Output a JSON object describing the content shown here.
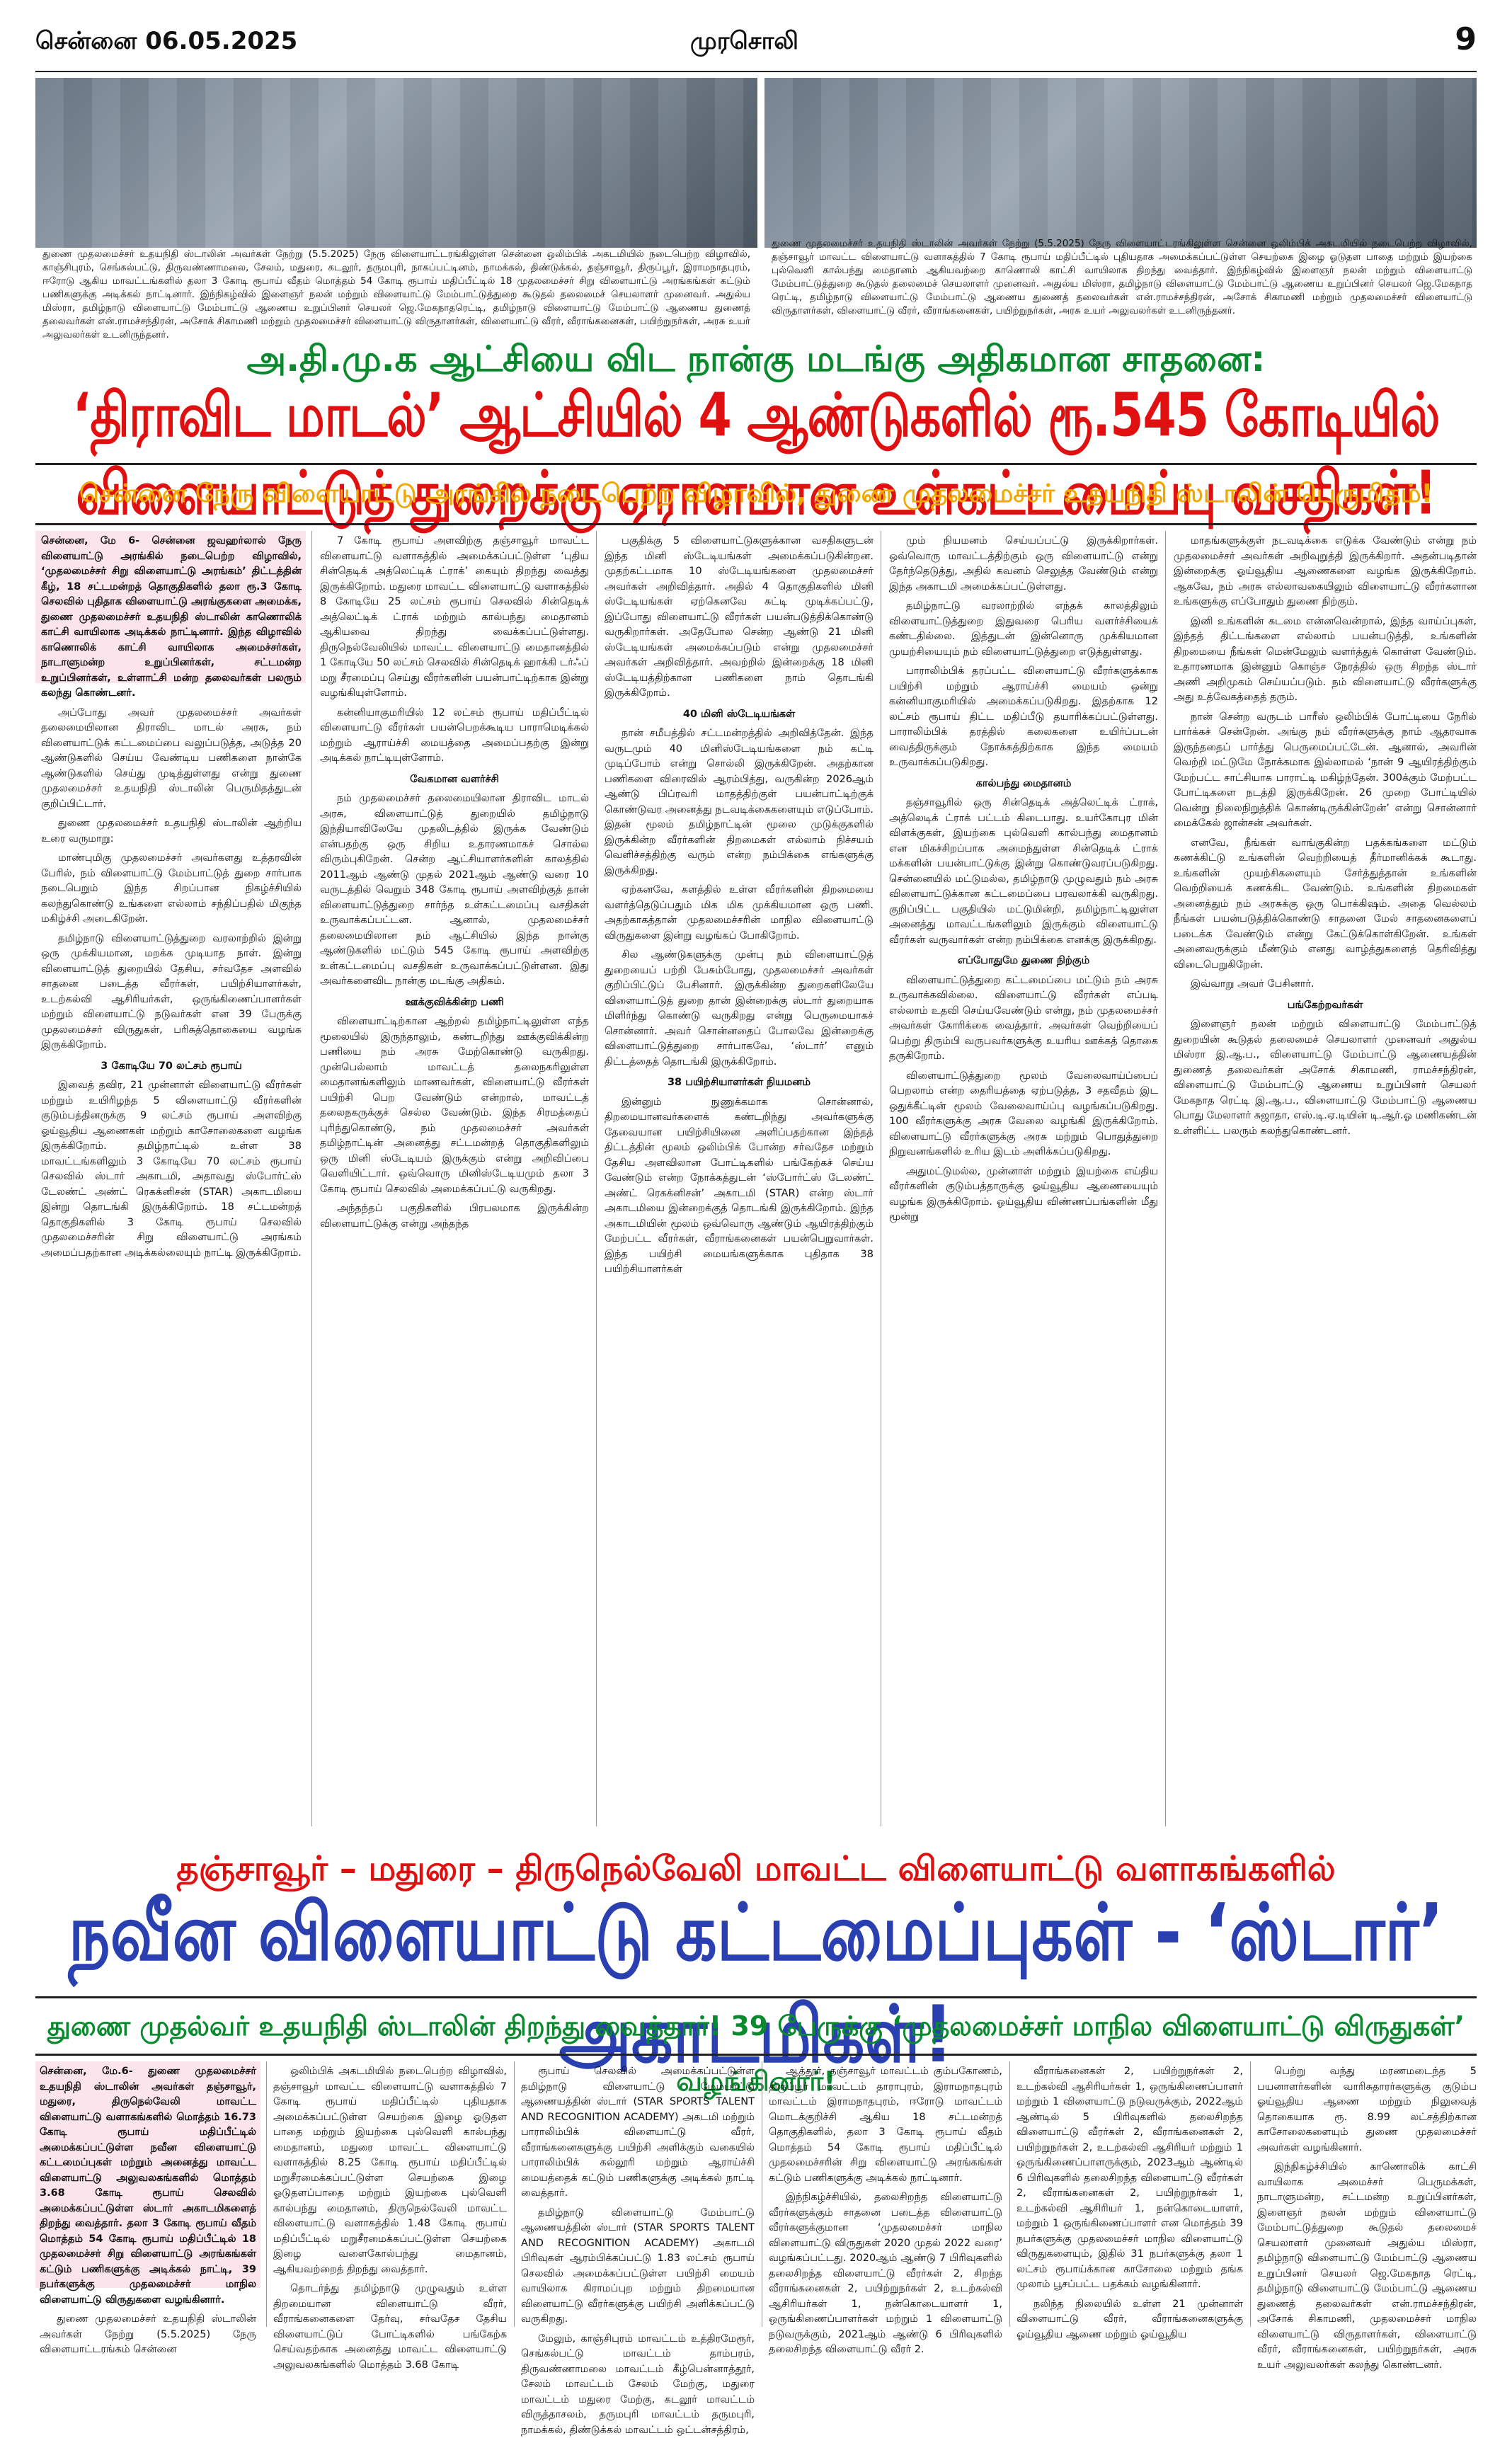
{
  "masthead": {
    "date": "சென்னை 06.05.2025",
    "name": "முரசொலி",
    "page": "9"
  },
  "captions": {
    "left": "துணை முதலமைச்சர் உதயநிதி ஸ்டாலின் அவர்கள் நேற்று (5.5.2025) நேரு விளையாட்டரங்கிலுள்ள சென்னை ஒலிம்பிக் அகடமியில் நடைபெற்ற விழாவில், காஞ்சிபுரம், செங்கல்பட்டு, திருவண்ணாமலை, சேலம், மதுரை, கடலூர், தருமபுரி, நாகப்பட்டினம், நாமக்கல், திண்டுக்கல், தஞ்சாவூர், திருப்பூர், இராமநாதபுரம், ஈரோடு ஆகிய மாவட்டங்களில் தலா 3 கோடி ரூபாய் வீதம் மொத்தம் 54 கோடி ரூபாய் மதிப்பீட்டில் 18 முதலமைச்சர் சிறு விளையாட்டு அரங்கங்கள் கட்டும் பணிகளுக்கு அடிக்கல் நாட்டினார். இந்நிகழ்வில் இளைஞர் நலன் மற்றும் விளையாட்டு மேம்பாட்டுத்துறை கூடுதல் தலைமைச் செயலாளர் முனைவர். அதுல்ய மிஸ்ரா, தமிழ்நாடு விளையாட்டு மேம்பாட்டு ஆணைய உறுப்பினர் செயலர் ஜெ.மேகநாதரெட்டி, தமிழ்நாடு விளையாட்டு மேம்பாட்டு ஆணைய துணைத் தலைவர்கள் என்.ராமச்சந்திரன், அசோக் சிகாமணி மற்றும் முதலமைச்சர் விளையாட்டு விருதாளர்கள், விளையாட்டு வீரர், வீராங்கனைகள், பயிற்றுநர்கள், அரசு உயர் அலுவலர்கள் உடனிருந்தனர்.",
    "right": "துணை முதலமைச்சர் உதயநிதி ஸ்டாலின் அவர்கள் நேற்று (5.5.2025) நேரு விளையாட்டரங்கிலுள்ள சென்னை ஒலிம்பிக் அகடமியில் நடைபெற்ற விழாவில், தஞ்சாவூர் மாவட்ட விளையாட்டு வளாகத்தில் 7 கோடி ரூபாய் மதிப்பீட்டில் புதியதாக அமைக்கப்பட்டுள்ள செயற்கை இழை ஓடுதள பாதை மற்றும் இயற்கை புல்வெளி கால்பந்து மைதானம் ஆகியவற்றை காணொலி காட்சி வாயிலாக திறந்து வைத்தார். இந்நிகழ்வில் இளைஞர் நலன் மற்றும் விளையாட்டு மேம்பாட்டுத்துறை கூடுதல் தலைமைச் செயலாளர் முனைவர். அதுல்ய மிஸ்ரா, தமிழ்நாடு விளையாட்டு மேம்பாட்டு ஆணைய உறுப்பினர் செயலர் ஜெ.மேகநாத ரெட்டி, தமிழ்நாடு விளையாட்டு மேம்பாட்டு ஆணைய துணைத் தலைவர்கள் என்.ராமச்சந்திரன், அசோக் சிகாமணி மற்றும் முதலமைச்சர் விளையாட்டு விருதாளர்கள், விளையாட்டு வீரர், வீராங்கனைகள், பயிற்றுநர்கள், அரசு உயர் அலுவலர்கள் உடனிருந்தனர்."
  },
  "story1": {
    "kicker": "அ.தி.மு.க ஆட்சியை விட நான்கு மடங்கு அதிகமான சாதனை:",
    "headline": "‘திராவிட மாடல்’ ஆட்சியில் 4 ஆண்டுகளில் ரூ.545 கோடியில் விளையாட்டுத் துறைக்கு ஏராளமான உள்கட்டமைப்பு வசதிகள்!",
    "deck": "சென்னை நேரு விளையாட்டு அரங்கில் நடைபெற்ற விழாவில், துணை முதலமைச்சர் உதயநிதி ஸ்டாலின் பெருமிதம்!",
    "columns": [
      [
        {
          "t": "lead",
          "v": "சென்னை, மே 6- சென்னை ஜவஹர்லால் நேரு விளையாட்டு அரங்கில் நடைபெற்ற விழாவில், ‘முதலமைச்சர் சிறு விளையாட்டு அரங்கம்’ திட்டத்தின் கீழ், 18 சட்டமன்றத் தொகுதிகளில் தலா ரூ.3 கோடி செலவில் புதிதாக விளையாட்டு அரங்குகளை அமைக்க, துணை முதலமைச்சர் உதயநிதி ஸ்டாலின் காணொலிக் காட்சி வாயிலாக அடிக்கல் நாட்டினார். இந்த விழாவில் காணொலிக் காட்சி வாயிலாக அமைச்சர்கள், நாடாளுமன்ற உறுப்பினர்கள், சட்டமன்ற உறுப்பினர்கள், உள்ளாட்சி மன்ற தலைவர்கள் பலரும் கலந்து கொண்டனர்."
        },
        {
          "t": "p",
          "v": "அப்போது அவர் முதலமைச்சர் அவர்கள் தலைமையிலான திராவிட மாடல் அரசு, நம் விளையாட்டுக் கட்டமைப்பை வலுப்படுத்த, அடுத்த 20 ஆண்டுகளில் செய்ய வேண்டிய பணிகளை நான்கே ஆண்டுகளில் செய்து முடித்துள்ளது என்று துணை முதலமைச்சர் உதயநிதி ஸ்டாலின் பெருமிதத்துடன் குறிப்பிட்டார்."
        },
        {
          "t": "p",
          "v": "துணை முதலமைச்சர் உதயநிதி ஸ்டாலின் ஆற்றிய உரை வருமாறு:"
        },
        {
          "t": "p",
          "v": "மாண்புமிகு முதலமைச்சர் அவர்களது உத்தரவின் பேரில், நம் விளையாட்டு மேம்பாட்டுத் துறை சார்பாக நடைபெறும் இந்த சிறப்பான நிகழ்ச்சியில் கலந்துகொண்டு உங்களை எல்லாம் சந்திப்பதில் மிகுந்த மகிழ்ச்சி அடைகிறேன்."
        },
        {
          "t": "p",
          "v": "தமிழ்நாடு விளையாட்டுத்துறை வரலாற்றில் இன்று ஒரு முக்கியமான, மறக்க முடியாத நாள். இன்று விளையாட்டுத் துறையில் தேசிய, சர்வதேச அளவில் சாதனை படைத்த வீரர்கள், பயிற்சியாளர்கள், உடற்கல்வி ஆசிரியர்கள், ஒருங்கிணைப்பாளர்கள் மற்றும் விளையாட்டு நடுவர்கள் என 39 பேருக்கு முதலமைச்சர் விருதுகள், பரிசுத்தொகையை வழங்க இருக்கிறோம்."
        },
        {
          "t": "sub",
          "v": "3 கோடியே 70 லட்சம் ரூபாய்"
        },
        {
          "t": "p",
          "v": "இவைத் தவிர, 21 முன்னாள் விளையாட்டு வீரர்கள் மற்றும் உயிரிழந்த 5 விளையாட்டு வீரர்களின் குடும்பத்தினருக்கு 9 லட்சம் ரூபாய் அளவிற்கு ஓய்வூதிய ஆணைகள் மற்றும் காசோலைகளை வழங்க இருக்கிறோம். தமிழ்நாட்டில் உள்ள 38 மாவட்டங்களிலும் 3 கோடியே 70 லட்சம் ரூபாய் செலவில் ஸ்டார் அகாடமி, அதாவது ஸ்போர்ட்ஸ் டேலண்ட் அண்ட் ரெகக்னிசன் (STAR) அகாடமியை இன்று தொடங்கி இருக்கிறோம். 18 சட்டமன்றத் தொகுதிகளில் 3 கோடி ரூபாய் செலவில் முதலமைச்சரின் சிறு விளையாட்டு அரங்கம் அமைப்பதற்கான அடிக்கல்லையும் நாட்டி இருக்கிறோம்."
        }
      ],
      [
        {
          "t": "p",
          "v": "7 கோடி ரூபாய் அளவிற்கு தஞ்சாவூர் மாவட்ட விளையாட்டு வளாகத்தில் அமைக்கப்பட்டுள்ள ‘புதிய சின்தெடிக் அத்லெட்டிக் ட்ராக்’ கையும் திறந்து வைத்து இருக்கிறோம். மதுரை மாவட்ட விளையாட்டு வளாகத்தில் 8 கோடியே 25 லட்சம் ரூபாய் செலவில் சின்தெடிக் அத்லெட்டிக் ட்ராக் மற்றும் கால்பந்து மைதானம் ஆகியவை திறந்து வைக்கப்பட்டுள்ளது. திருநெல்வேலியில் மாவட்ட விளையாட்டு மைதானத்தில் 1 கோடியே 50 லட்சம் செலவில் சின்தெடிக் ஹாக்கி டர்ஃப் மறு சீரமைப்பு செய்து வீரர்களின் பயன்பாட்டிற்காக இன்று வழங்கியுள்ளோம்."
        },
        {
          "t": "p",
          "v": "கன்னியாகுமரியில் 12 லட்சம் ரூபாய் மதிப்பீட்டில் விளையாட்டு வீரர்கள் பயன்பெறக்கூடிய பாராமெடிக்கல் மற்றும் ஆராய்ச்சி மையத்தை அமைப்பதற்கு இன்று அடிக்கல் நாட்டியுள்ளோம்."
        },
        {
          "t": "sub",
          "v": "வேகமான வளர்ச்சி"
        },
        {
          "t": "p",
          "v": "நம் முதலமைச்சர் தலைமையிலான திராவிட மாடல் அரசு, விளையாட்டுத் துறையில் தமிழ்நாடு இந்தியாவிலேயே முதலிடத்தில் இருக்க வேண்டும் என்பதற்கு ஒரு சிறிய உதாரணமாகச் சொல்ல விரும்புகிறேன். சென்ற ஆட்சியாளர்களின் காலத்தில் 2011ஆம் ஆண்டு முதல் 2021ஆம் ஆண்டு வரை 10 வருடத்தில் வெறும் 348 கோடி ரூபாய் அளவிற்குத் தான் விளையாட்டுத்துறை சார்ந்த உள்கட்டமைப்பு வசதிகள் உருவாக்கப்பட்டன. ஆனால், முதலமைச்சர் தலைமையிலான நம் ஆட்சியில் இந்த நான்கு ஆண்டுகளில் மட்டும் 545 கோடி ரூபாய் அளவிற்கு உள்கட்டமைப்பு வசதிகள் உருவாக்கப்பட்டுள்ளன. இது அவர்களைவிட நான்கு மடங்கு அதிகம்."
        },
        {
          "t": "sub",
          "v": "ஊக்குவிக்கின்ற பணி"
        },
        {
          "t": "p",
          "v": "விளையாட்டிற்கான ஆற்றல் தமிழ்நாட்டிலுள்ள எந்த மூலையில் இருந்தாலும், கண்டறிந்து ஊக்குவிக்கின்ற பணியை நம் அரசு மேற்கொண்டு வருகிறது. முன்பெல்லாம் மாவட்டத் தலைநகரிலுள்ள மைதானங்களிலும் மாணவர்கள், விளையாட்டு வீரர்கள் பயிற்சி பெற வேண்டும் என்றால், மாவட்டத் தலைநகருக்குச் செல்ல வேண்டும். இந்த சிரமத்தைப் புரிந்துகொண்டு, நம் முதலமைச்சர் அவர்கள் தமிழ்நாட்டின் அனைத்து சட்டமன்றத் தொகுதிகளிலும் ஒரு மினி ஸ்டேடியம் இருக்கும் என்று அறிவிப்பை வெளியிட்டார். ஒவ்வொரு மினிஸ்டேடியமும் தலா 3 கோடி ரூபாய் செலவில் அமைக்கப்பட்டு வருகிறது."
        },
        {
          "t": "p",
          "v": "அந்தந்தப் பகுதிகளில் பிரபலமாக இருக்கின்ற விளையாட்டுக்கு என்று அந்தந்த"
        }
      ],
      [
        {
          "t": "p",
          "v": "பகுதிக்கு 5 விளையாட்டுகளுக்கான வசதிகளுடன் இந்த மினி ஸ்டேடியங்கள் அமைக்கப்படுகின்றன. முதற்கட்டமாக 10 ஸ்டேடியங்களை முதலமைச்சர் அவர்கள் அறிவித்தார். அதில் 4 தொகுதிகளில் மினி ஸ்டேடியங்கள் ஏற்கெனவே கட்டி முடிக்கப்பட்டு, இப்போது விளையாட்டு வீரர்கள் பயன்படுத்திக்கொண்டு வருகிறார்கள். அதேபோல சென்ற ஆண்டு 21 மினி ஸ்டேடியங்கள் அமைக்கப்படும் என்று முதலமைச்சர் அவர்கள் அறிவித்தார். அவற்றில் இன்றைக்கு 18 மினி ஸ்டேடியத்திற்கான பணிகளை நாம் தொடங்கி இருக்கிறோம்."
        },
        {
          "t": "sub",
          "v": "40 மினி ஸ்டேடியங்கள்"
        },
        {
          "t": "p",
          "v": "நான் சமீபத்தில் சட்டமன்றத்தில் அறிவித்தேன். இந்த வருடமும் 40 மினிஸ்டேடியங்களை நம் கட்டி முடிப்போம் என்று சொல்லி இருக்கிறேன். அதற்கான பணிகளை விரைவில் ஆரம்பித்து, வருகின்ற 2026ஆம் ஆண்டு பிப்ரவரி மாதத்திற்குள் பயன்பாட்டிற்குக் கொண்டுவர அனைத்து நடவடிக்கைகளையும் எடுப்போம். இதன் மூலம் தமிழ்நாட்டின் மூலை முடுக்குகளில் இருக்கின்ற வீரர்களின் திறமைகள் எல்லாம் நிச்சயம் வெளிச்சத்திற்கு வரும் என்ற நம்பிக்கை எங்களுக்கு இருக்கிறது."
        },
        {
          "t": "p",
          "v": "ஏற்கனவே, களத்தில் உள்ள வீரர்களின் திறமையை வளர்த்தெடுப்பதும் மிக மிக முக்கியமான ஒரு பணி. அதற்காகத்தான் முதலமைச்சரின் மாநில விளையாட்டு விருதுகளை இன்று வழங்கப் போகிறோம்."
        },
        {
          "t": "p",
          "v": "சில ஆண்டுகளுக்கு முன்பு நம் விளையாட்டுத் துறையைப் பற்றி பேசும்போது, முதலமைச்சர் அவர்கள் குறிப்பிட்டுப் பேசினார். இருக்கின்ற துறைகளிலேயே விளையாட்டுத் துறை தான் இன்றைக்கு ஸ்டார் துறையாக மிளிர்ந்து கொண்டு வருகிறது என்று பெருமையாகச் சொன்னார். அவர் சொன்னதைப் போலவே இன்றைக்கு விளையாட்டுத்துறை சார்பாகவே, ‘ஸ்டார்’ எனும் திட்டத்தைத் தொடங்கி இருக்கிறோம்."
        },
        {
          "t": "sub",
          "v": "38 பயிற்சியாளர்கள் நியமனம்"
        },
        {
          "t": "p",
          "v": "இன்னும் நுணுக்கமாக சொன்னால், திறமையானவர்களைக் கண்டறிந்து அவர்களுக்கு தேவையான பயிற்சியினை அளிப்பதற்கான இந்தத் திட்டத்தின் மூலம் ஒலிம்பிக் போன்ற சர்வதேச மற்றும் தேசிய அளவிலான போட்டிகளில் பங்கேற்கச் செய்ய வேண்டும் என்ற நோக்கத்துடன் ‘ஸ்போர்ட்ஸ் டேலண்ட் அண்ட் ரெகக்னிசன்’ அகாடமி (STAR) என்ற ஸ்டார் அகாடமியை இன்றைக்குத் தொடங்கி இருக்கிறோம். இந்த அகாடமியின் மூலம் ஒவ்வொரு ஆண்டும் ஆயிரத்திற்கும் மேற்பட்ட வீரர்கள், வீராங்கனைகள் பயன்பெறுவார்கள். இந்த பயிற்சி மையங்களுக்காக புதிதாக 38 பயிற்சியாளர்கள்"
        }
      ],
      [
        {
          "t": "p",
          "v": "மும் நியமனம் செய்யப்பட்டு இருக்கிறார்கள். ஒவ்வொரு மாவட்டத்திற்கும் ஒரு விளையாட்டு என்று தேர்ந்தெடுத்து, அதில் கவனம் செலுத்த வேண்டும் என்று இந்த அகாடமி அமைக்கப்பட்டுள்ளது."
        },
        {
          "t": "p",
          "v": "தமிழ்நாட்டு வரலாற்றில் எந்தக் காலத்திலும் விளையாட்டுத்துறை இதுவரை பெரிய வளர்ச்சியைக் கண்டதில்லை. இத்துடன் இன்னொரு முக்கியமான முயற்சியையும் நம் விளையாட்டுத்துறை எடுத்துள்ளது."
        },
        {
          "t": "p",
          "v": "பாராலிம்பிக் தரப்பட்ட விளையாட்டு வீரர்களுக்காக பயிற்சி மற்றும் ஆராய்ச்சி மையம் ஒன்று கன்னியாகுமரியில் அமைக்கப்படுகிறது. இதற்காக 12 லட்சம் ரூபாய் திட்ட மதிப்பீடு தயாரிக்கப்பட்டுள்ளது. பாராலிம்பிக் தரத்தில் கலைகளை உயிர்ப்படன் வைத்திருக்கும் நோக்கத்திற்காக இந்த மையம் உருவாக்கப்படுகிறது."
        },
        {
          "t": "sub",
          "v": "கால்பந்து மைதானம்"
        },
        {
          "t": "p",
          "v": "தஞ்சாவூரில் ஒரு சின்தெடிக் அத்லெட்டிக் ட்ராக், அத்லெடிக் ட்ராக் பட்டம் கிடைபாது. உயர்கோபுர மின் விளக்குகள், இயற்கை புல்வெளி கால்பந்து மைதானம் என மிகச்சிறப்பாக அமைந்துள்ள சின்தெடிக் ட்ராக் மக்களின் பயன்பாட்டுக்கு இன்று கொண்டுவரப்படுகிறது. சென்னையில் மட்டுமல்ல, தமிழ்நாடு முழுவதும் நம் அரசு விளையாட்டுக்கான கட்டமைப்பை பரவலாக்கி வருகிறது. குறிப்பிட்ட பகுதியில் மட்டுமின்றி, தமிழ்நாட்டிலுள்ள அனைத்து மாவட்டங்களிலும் இருக்கும் விளையாட்டு வீரர்கள் வருவார்கள் என்ற நம்பிக்கை எனக்கு இருக்கிறது."
        },
        {
          "t": "sub",
          "v": "எப்போதுமே துணை நிற்கும்"
        },
        {
          "t": "p",
          "v": "விளையாட்டுத்துறை கட்டமைப்பை மட்டும் நம் அரசு உருவாக்கவில்லை. விளையாட்டு வீரர்கள் எப்படி எல்லாம் உதவி செய்யவேண்டும் என்று, நம் முதலமைச்சர் அவர்கள் கோரிக்கை வைத்தார். அவர்கள் வெற்றியைப் பெற்று திரும்பி வருபவர்களுக்கு உயரிய ஊக்கத் தொகை தருகிறோம்."
        },
        {
          "t": "p",
          "v": "விளையாட்டுத்துறை மூலம் வேலைவாய்ப்பைப் பெறலாம் என்ற தைரியத்தை ஏற்படுத்த, 3 சதவீதம் இட ஒதுக்கீட்டின் மூலம் வேலைவாய்ப்பு வழங்கப்படுகிறது. 100 வீரர்களுக்கு அரசு வேலை வழங்கி இருக்கிறோம். விளையாட்டு வீரர்களுக்கு அரசு மற்றும் பொதுத்துறை நிறுவனங்களில் உரிய இடம் அளிக்கப்படுகிறது."
        },
        {
          "t": "p",
          "v": "அதுமட்டுமல்ல, முன்னாள் மற்றும் இயற்கை எய்திய வீரர்களின் குடும்பத்தாருக்கு ஓய்வூதிய ஆணையையும் வழங்க இருக்கிறோம். ஓய்வூதிய விண்ணப்பங்களின் மீது மூன்று"
        }
      ],
      [
        {
          "t": "p",
          "v": "மாதங்களுக்குள் நடவடிக்கை எடுக்க வேண்டும் என்று நம் முதலமைச்சர் அவர்கள் அறிவுறுத்தி இருக்கிறார். அதன்படிதான் இன்றைக்கு ஓய்வூதிய ஆணைகளை வழங்க இருக்கிறோம். ஆகவே, நம் அரசு எல்லாவகையிலும் விளையாட்டு வீரர்களான உங்களுக்கு எப்போதும் துணை நிற்கும்."
        },
        {
          "t": "p",
          "v": "இனி உங்களின் கடமை என்னவென்றால், இந்த வாய்ப்புகள், இந்தத் திட்டங்களை எல்லாம் பயன்படுத்தி, உங்களின் திறமையை நீங்கள் மென்மேலும் வளர்த்துக் கொள்ள வேண்டும். உதாரணமாக இன்னும் கொஞ்ச நேரத்தில் ஒரு சிறந்த ஸ்டார் அணி அறிமுகம் செய்யப்படும். நம் விளையாட்டு வீரர்களுக்கு அது உத்வேகத்தைத் தரும்."
        },
        {
          "t": "p",
          "v": "நான் சென்ற வருடம் பாரீஸ் ஒலிம்பிக் போட்டியை நேரில் பார்க்கச் சென்றேன். அங்கு நம் வீரர்களுக்கு நாம் ஆதரவாக இருந்ததைப் பார்த்து பெருமைப்பட்டேன். ஆனால், அவரின் வெற்றி மட்டுமே நோக்கமாக இல்லாமல் ‘நான் 9 ஆயிரத்திற்கும் மேற்பட்ட சாட்சியாக பாராட்டி மகிழ்ந்தேன். 300க்கும் மேற்பட்ட போட்டிகளை நடத்தி இருக்கிறேன். 26 முறை போட்டியில் வென்று நிலைநிறுத்திக் கொண்டிருக்கின்றேன்’ என்று சொன்னார் மைக்கேல் ஜான்சன் அவர்கள்."
        },
        {
          "t": "p",
          "v": "எனவே, நீங்கள் வாங்குகின்ற பதக்கங்களை மட்டும் கணக்கிட்டு உங்களின் வெற்றியைத் தீர்மானிக்கக் கூடாது. உங்களின் முயற்சிகளையும் சேர்த்துத்தான் உங்களின் வெற்றியைக் கணக்கிட வேண்டும். உங்களின் திறமைகள் அனைத்தும் நம் அரசுக்கு ஒரு பொக்கிஷம். அதை வெல்லம் நீங்கள் பயன்படுத்திக்கொண்டு சாதனை மேல் சாதனைகளைப் படைக்க வேண்டும் என்று கேட்டுக்கொள்கிறேன். உங்கள் அனைவருக்கும் மீண்டும் எனது வாழ்த்துகளைத் தெரிவித்து விடைபெறுகிறேன்."
        },
        {
          "t": "p",
          "v": "இவ்வாறு அவர் பேசினார்."
        },
        {
          "t": "sub",
          "v": "பங்கேற்றவர்கள்"
        },
        {
          "t": "p",
          "v": "இளைஞர் நலன் மற்றும் விளையாட்டு மேம்பாட்டுத் துறையின் கூடுதல் தலைமைச் செயலாளர் முனைவர் அதுல்ய மிஸ்ரா இ.ஆ.ப., விளையாட்டு மேம்பாட்டு ஆணையத்தின் துணைத் தலைவர்கள் அசோக் சிகாமணி, ராமச்சந்திரன், விளையாட்டு மேம்பாட்டு ஆணைய உறுப்பினர் செயலர் மேகநாத ரெட்டி இ.ஆ.ப., விளையாட்டு மேம்பாட்டு ஆணைய பொது மேலாளர் சுஜாதா, எஸ்.டி.ஏ.டியின் டி.ஆர்.ஓ மணிகண்டன் உள்ளிட்ட பலரும் கலந்துகொண்டனர்."
        }
      ]
    ]
  },
  "story2": {
    "kicker": "தஞ்சாவூர் – மதுரை – திருநெல்வேலி மாவட்ட விளையாட்டு வளாகங்களில்",
    "headline": "நவீன விளையாட்டு கட்டமைப்புகள் - ‘ஸ்டார்’ அகாடமிகள்!",
    "deck": "துணை முதல்வர் உதயநிதி ஸ்டாலின் திறந்து வைத்தார்! 39 பேருக்கு ‘முதலமைச்சர் மாநில விளையாட்டு விருதுகள்’ வழங்கினார்!",
    "columns": [
      [
        {
          "t": "lead",
          "v": "சென்னை, மே.6- துணை முதலமைச்சர் உதயநிதி ஸ்டாலின் அவர்கள் தஞ்சாவூர், மதுரை, திருநெல்வேலி மாவட்ட விளையாட்டு வளாகங்களில் மொத்தம் 16.73 கோடி ரூபாய் மதிப்பீட்டில் அமைக்கப்பட்டுள்ள நவீன விளையாட்டு கட்டமைப்புகள் மற்றும் அனைத்து மாவட்ட விளையாட்டு அலுவலகங்களில் மொத்தம் 3.68 கோடி ரூபாய் செலவில் அமைக்கப்பட்டுள்ள ஸ்டார் அகாடமிகளைத் திறந்து வைத்தார். தலா 3 கோடி ரூபாய் வீதம் மொத்தம் 54 கோடி ரூபாய் மதிப்பீட்டில் 18 முதலமைச்சர் சிறு விளையாட்டு அரங்கங்கள் கட்டும் பணிகளுக்கு அடிக்கல் நாட்டி, 39 நபர்களுக்கு முதலமைச்சர் மாநில விளையாட்டு விருதுகளை வழங்கினார்."
        },
        {
          "t": "p",
          "v": "துணை முதலமைச்சர் உதயநிதி ஸ்டாலின் அவர்கள் நேற்று (5.5.2025) நேரு விளையாட்டரங்கம் சென்னை"
        }
      ],
      [
        {
          "t": "p",
          "v": "ஒலிம்பிக் அகடமியில் நடைபெற்ற விழாவில், தஞ்சாவூர் மாவட்ட விளையாட்டு வளாகத்தில் 7 கோடி ரூபாய் மதிப்பீட்டில் புதியதாக அமைக்கப்பட்டுள்ள செயற்கை இழை ஓடுதள பாதை மற்றும் இயற்கை புல்வெளி கால்பந்து மைதானம், மதுரை மாவட்ட விளையாட்டு வளாகத்தில் 8.25 கோடி ரூபாய் மதிப்பீட்டில் மறுசீரமைக்கப்பட்டுள்ள செயற்கை இழை ஓடுதளப்பாதை மற்றும் இயற்கை புல்வெளி கால்பந்து மைதானம், திருநெல்வேலி மாவட்ட விளையாட்டு வளாகத்தில் 1.48 கோடி ரூபாய் மதிப்பீட்டில் மறுசீரமைக்கப்பட்டுள்ள செயற்கை இழை வளைகோல்பந்து மைதானம், ஆகியவற்றைத் திறந்து வைத்தார்."
        },
        {
          "t": "p",
          "v": "தொடர்ந்து தமிழ்நாடு முழுவதும் உள்ள திறமையான விளையாட்டு வீரர், வீராங்கனைகளை தேர்வு, சர்வதேச தேசிய விளையாட்டுப் போட்டிகளில் பங்கேற்க செய்வதற்காக அனைத்து மாவட்ட விளையாட்டு அலுவலகங்களில் மொத்தம் 3.68 கோடி"
        }
      ],
      [
        {
          "t": "p",
          "v": "ரூபாய் செலவில் அமைக்கப்பட்டுள்ள தமிழ்நாடு விளையாட்டு மேம்பாட்டு ஆணையத்தின் ஸ்டார் (STAR SPORTS TALENT AND RECOGNITION ACADEMY) அகடமி மற்றும் பாராலிம்பிக் விளையாட்டு வீரர், வீராங்கனைகளுக்கு பயிற்சி அளிக்கும் வகையில் பாராலிம்பிக் கல்லூரி மற்றும் ஆராய்ச்சி மையத்தைக் கட்டும் பணிகளுக்கு அடிக்கல் நாட்டி வைத்தார்."
        },
        {
          "t": "p",
          "v": "தமிழ்நாடு விளையாட்டு மேம்பாட்டு ஆணையத்தின் ஸ்டார் (STAR SPORTS TALENT AND RECOGNITION ACADEMY) அகாடமி பிரிவுகள் ஆரம்பிக்கப்பட்டு 1.83 லட்சம் ரூபாய் செலவில் அமைக்கப்பட்டுள்ள பயிற்சி மையம் வாயிலாக கிராமப்புற மற்றும் திறமையான விளையாட்டு வீரர்களுக்கு பயிற்சி அளிக்கப்பட்டு வருகிறது."
        },
        {
          "t": "p",
          "v": "மேலும், காஞ்சிபுரம் மாவட்டம் உத்திரமேரூர், செங்கல்பட்டு மாவட்டம் தாம்பரம், திருவண்ணாமலை மாவட்டம் கீழ்பென்னாத்தூர், சேலம் மாவட்டம் சேலம் மேற்கு, மதுரை மாவட்டம் மதுரை மேற்கு, கடலூர் மாவட்டம் விருத்தாசலம், தருமபுரி மாவட்டம் தருமபுரி, நாமக்கல், திண்டுக்கல் மாவட்டம் ஒட்டன்சத்திரம்,"
        }
      ],
      [
        {
          "t": "p",
          "v": "ஆத்தூர், தஞ்சாவூர் மாவட்டம் கும்பகோணம், திருப்பூர் மாவட்டம் தாராபுரம், இராமநாதபுரம் மாவட்டம் இராமநாதபுரம், ஈரோடு மாவட்டம் மொடக்குறிச்சி ஆகிய 18 சட்டமன்றத் தொகுதிகளில், தலா 3 கோடி ரூபாய் வீதம் மொத்தம் 54 கோடி ரூபாய் மதிப்பீட்டில் முதலமைச்சரின் சிறு விளையாட்டு அரங்கங்கள் கட்டும் பணிகளுக்கு அடிக்கல் நாட்டினார்."
        },
        {
          "t": "p",
          "v": "இந்நிகழ்ச்சியில், தலைசிறந்த விளையாட்டு வீரர்களுக்கும் சாதனை படைத்த விளையாட்டு வீரர்களுக்குமான ‘முதலமைச்சர் மாநில விளையாட்டு விருதுகள் 2020 முதல் 2022 வரை’ வழங்கப்பட்டது. 2020ஆம் ஆண்டு 7 பிரிவுகளில் தலைசிறந்த விளையாட்டு வீரர்கள் 2, சிறந்த வீராங்கனைகள் 2, பயிற்றுநர்கள் 2, உடற்கல்வி ஆசிரியர்கள் 1, நன்கொடையாளர் 1, ஒருங்கிணைப்பாளர்கள் மற்றும் 1 விளையாட்டு நடுவருக்கும், 2021ஆம் ஆண்டு 6 பிரிவுகளில் தலைசிறந்த விளையாட்டு வீரர் 2."
        }
      ],
      [
        {
          "t": "p",
          "v": "வீராங்கனைகள் 2, பயிற்றுநர்கள் 2, உடற்கல்வி ஆசிரியர்கள் 1, ஒருங்கிணைப்பாளர் மற்றும் 1 விளையாட்டு நடுவருக்கும், 2022ஆம் ஆண்டில் 5 பிரிவுகளில் தலைசிறந்த விளையாட்டு வீரர்கள் 2, வீராங்கனைகள் 2, பயிற்றுநர்கள் 2, உடற்கல்வி ஆசிரியர் மற்றும் 1 ஒருங்கிணைப்பாளருக்கும், 2023ஆம் ஆண்டில் 6 பிரிவுகளில் தலைசிறந்த விளையாட்டு வீரர்கள் 2, வீராங்கனைகள் 2, பயிற்றுநர்கள் 1, உடற்கல்வி ஆசிரியர் 1, நன்கொடையாளர், மற்றும் 1 ஒருங்கிணைப்பாளர் என மொத்தம் 39 நபர்களுக்கு முதலமைச்சர் மாநில விளையாட்டு விருதுகளையும், இதில் 31 நபர்களுக்கு தலா 1 லட்சம் ரூபாய்க்கான காசோலை மற்றும் தங்க முலாம் பூசப்பட்ட பதக்கம் வழங்கினார்."
        },
        {
          "t": "p",
          "v": "நலிந்த நிலையில் உள்ள 21 முன்னாள் விளையாட்டு வீரர், வீராங்கனைகளுக்கு ஓய்வூதிய ஆணை மற்றும் ஓய்வூதிய"
        }
      ],
      [
        {
          "t": "p",
          "v": "பெற்று வந்து மரணமடைந்த 5 பயனாளர்களின் வாரிசுதாரர்களுக்கு குடும்ப ஓய்வூதிய ஆணை மற்றும் நிலுவைத் தொகையாக ரூ. 8.99 லட்சத்திற்கான காசோலைகளையும் துணை முதலமைச்சர் அவர்கள் வழங்கினார்."
        },
        {
          "t": "p",
          "v": "இந்நிகழ்ச்சியில் காணொலிக் காட்சி வாயிலாக அமைச்சர் பெருமக்கள், நாடாளுமன்ற, சட்டமன்ற உறுப்பினர்கள், இளைஞர் நலன் மற்றும் விளையாட்டு மேம்பாட்டுத்துறை கூடுதல் தலைமைச் செயலாளர் முனைவர் அதுல்ய மிஸ்ரா, தமிழ்நாடு விளையாட்டு மேம்பாட்டு ஆணைய உறுப்பினர் செயலர் ஜெ.மேகநாத ரெட்டி, தமிழ்நாடு விளையாட்டு மேம்பாட்டு ஆணைய துணைத் தலைவர்கள் என்.ராமச்சந்திரன், அசோக் சிகாமணி, முதலமைச்சர் மாநில விளையாட்டு விருதாளர்கள், விளையாட்டு வீரர், வீராங்கனைகள், பயிற்றுநர்கள், அரசு உயர் அலுவலர்கள் கலந்து கொண்டனர்."
        }
      ]
    ]
  }
}
